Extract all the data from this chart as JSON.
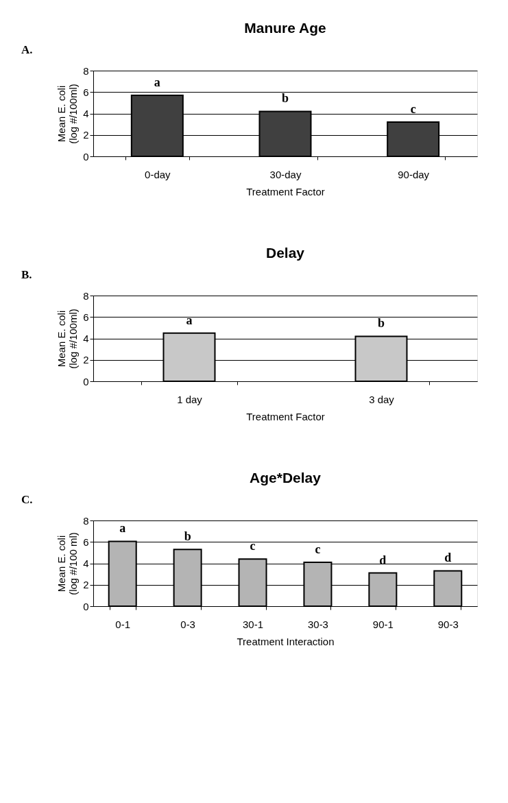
{
  "chart_data": [
    {
      "type": "bar",
      "title": "Manure Age",
      "xlabel": "Treatment Factor",
      "ylabel": "Mean E. coli\n(log #/100ml)",
      "categories": [
        "0-day",
        "30-day",
        "90-day"
      ],
      "values": [
        5.7,
        4.2,
        3.2
      ],
      "value_labels": [
        "a",
        "b",
        "c"
      ],
      "color": "#404040",
      "ylim": [
        0,
        8
      ],
      "yticks": [
        0,
        2,
        4,
        6,
        8
      ],
      "grid": "y",
      "annotations": [
        "A."
      ]
    },
    {
      "type": "bar",
      "title": "Delay",
      "xlabel": "Treatment Factor",
      "ylabel": "Mean E. coli\n(log #/100ml)",
      "categories": [
        "1 day",
        "3 day"
      ],
      "values": [
        4.5,
        4.2
      ],
      "value_labels": [
        "a",
        "b"
      ],
      "color": "#c8c8c8",
      "ylim": [
        0,
        8
      ],
      "yticks": [
        0,
        2,
        4,
        6,
        8
      ],
      "grid": "y",
      "annotations": [
        "B."
      ]
    },
    {
      "type": "bar",
      "title": "Age*Delay",
      "xlabel": "Treatment Interaction",
      "ylabel": "Mean E. coli\n(log #/100 ml)",
      "categories": [
        "0-1",
        "0-3",
        "30-1",
        "30-3",
        "90-1",
        "90-3"
      ],
      "values": [
        6.05,
        5.3,
        4.4,
        4.1,
        3.1,
        3.3
      ],
      "value_labels": [
        "a",
        "b",
        "c",
        "c",
        "d",
        "d"
      ],
      "color": "#b4b4b4",
      "ylim": [
        0,
        8
      ],
      "yticks": [
        0,
        2,
        4,
        6,
        8
      ],
      "grid": "y",
      "annotations": [
        "C."
      ]
    }
  ]
}
